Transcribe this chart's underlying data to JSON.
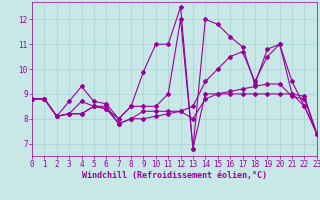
{
  "background_color": "#c8e8e8",
  "grid_color": "#a8d0d0",
  "line_color": "#990099",
  "marker": "D",
  "markersize": 2.0,
  "linewidth": 0.8,
  "xlim": [
    0,
    23
  ],
  "ylim": [
    6.5,
    12.7
  ],
  "yticks": [
    7,
    8,
    9,
    10,
    11,
    12
  ],
  "xticks": [
    0,
    1,
    2,
    3,
    4,
    5,
    6,
    7,
    8,
    9,
    10,
    11,
    12,
    13,
    14,
    15,
    16,
    17,
    18,
    19,
    20,
    21,
    22,
    23
  ],
  "xlabel": "Windchill (Refroidissement éolien,°C)",
  "xlabel_fontsize": 6,
  "tick_fontsize": 5.5,
  "curves": [
    [
      8.8,
      8.8,
      8.1,
      8.7,
      9.3,
      8.7,
      8.6,
      8.0,
      8.5,
      9.9,
      11.0,
      11.0,
      12.5,
      6.8,
      12.0,
      11.8,
      11.3,
      10.9,
      9.4,
      10.8,
      11.0,
      9.0,
      8.5,
      7.4
    ],
    [
      8.8,
      8.8,
      8.1,
      8.2,
      8.7,
      8.5,
      8.5,
      7.8,
      8.0,
      8.3,
      8.3,
      8.3,
      8.3,
      8.0,
      8.8,
      9.0,
      9.1,
      9.2,
      9.3,
      9.4,
      9.4,
      8.9,
      8.8,
      7.4
    ],
    [
      8.8,
      8.8,
      8.1,
      8.2,
      8.2,
      8.5,
      8.4,
      8.0,
      8.5,
      8.5,
      8.5,
      9.0,
      12.0,
      6.8,
      9.0,
      9.0,
      9.0,
      9.0,
      9.0,
      9.0,
      9.0,
      9.0,
      8.9,
      7.4
    ],
    [
      8.8,
      8.8,
      8.1,
      8.2,
      8.2,
      8.5,
      8.4,
      7.8,
      8.0,
      8.0,
      8.1,
      8.2,
      8.3,
      8.5,
      9.5,
      10.0,
      10.5,
      10.7,
      9.5,
      10.5,
      11.0,
      9.5,
      8.5,
      7.4
    ]
  ]
}
